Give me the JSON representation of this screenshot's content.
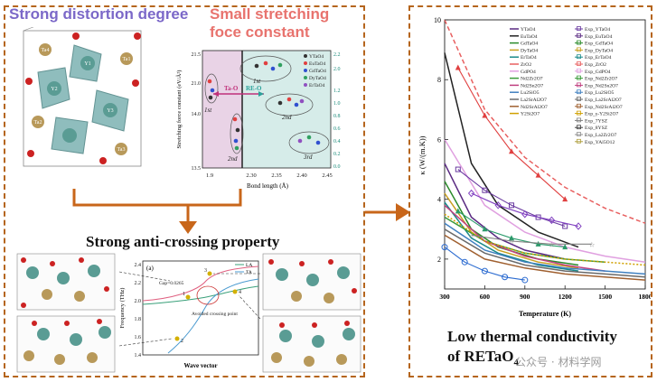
{
  "titles": {
    "distortion": "Strong distortion degree",
    "stretching": "Small stretching foce constant",
    "anticrossing": "Strong anti-crossing property",
    "conductivity_line1": "Low thermal conductivity",
    "conductivity_line2": "of RETaO",
    "conductivity_sub": "4"
  },
  "watermark": "公众号 · 材料学网",
  "crystal_labels": [
    "Y1",
    "Y2",
    "Y3",
    "Ta1",
    "Ta2",
    "Ta3",
    "Ta4"
  ],
  "chart_data": [
    {
      "type": "scatter",
      "title": "",
      "xlabel": "Bond length (Å)",
      "ylabel": "Stretching force constant (eV/Å²)",
      "xticks": [
        "1.9",
        "2.30",
        "2.35",
        "2.40",
        "2.45"
      ],
      "yticks_left": [
        "13.5",
        "14.0",
        "21.0",
        "21.5"
      ],
      "yticks_right": [
        "0.0",
        "0.2",
        "0.4",
        "0.6",
        "0.8",
        "1.0",
        "1.2",
        "2.0",
        "2.2"
      ],
      "legend": [
        "YTaO4",
        "EuTaO4",
        "GdTaO4",
        "DyTaO4",
        "ErTaO4"
      ],
      "annotations": [
        "1st",
        "2nd",
        "3rd",
        "1st",
        "2nd",
        "Ta-O",
        "RE-O"
      ],
      "legend_colors": [
        "#333333",
        "#e04040",
        "#3050d0",
        "#30a060",
        "#9050c0"
      ]
    },
    {
      "type": "line",
      "title": "(a)",
      "xlabel": "Wave vector",
      "ylabel": "Frequency (THz)",
      "yticks": [
        "1.4",
        "1.6",
        "1.8",
        "2.0",
        "2.2",
        "2.4"
      ],
      "legend": [
        "LA",
        "TA"
      ],
      "annotations": [
        "Gap=0.0265",
        "Avoided crossing point",
        "1",
        "2",
        "3",
        "4"
      ]
    },
    {
      "type": "line",
      "xlabel": "Temperature (K)",
      "ylabel": "κ (W/(m.K))",
      "xticks": [
        "300",
        "600",
        "900",
        "1200",
        "1500",
        "1800"
      ],
      "yticks": [
        "2",
        "4",
        "6",
        "8",
        "10"
      ],
      "xlim": [
        300,
        1800
      ],
      "ylim": [
        1,
        10
      ],
      "legend_left": [
        "YTaO4",
        "EuTaO4",
        "GdTaO4",
        "DyTaO4",
        "ErTaO4",
        "ZrO2",
        "GdPO4",
        "Nd2Zr2O7",
        "Nd2Sn2O7",
        "Lu2SiO5",
        "La2SrAl2O7",
        "Nd2SrAl2O7",
        "Y2Si2O7"
      ],
      "legend_right": [
        "Exp_YTaO4",
        "Exp_EuTaO4",
        "Exp_GdTaO4",
        "Exp_DyTaO4",
        "Exp_ErTaO4",
        "Exp_ZrO2",
        "Exp_GdPO4",
        "Exp_Nd2Zr2O7",
        "Exp_Nd2Sn2O7",
        "Exp_Lu2SiO5",
        "Exp_La2SrAl2O7",
        "Exp_Nd2SrAl2O7",
        "Exp_γ-Y2Si2O7",
        "Exp_7YSZ",
        "Exp_8YSZ",
        "Exp_La2Zr2O7",
        "Exp_YAl5O12"
      ],
      "series": [
        {
          "color": "#5a2a82",
          "x": [
            300,
            500,
            700,
            900,
            1200
          ],
          "y": [
            5.2,
            3.4,
            2.7,
            2.3,
            2.0
          ]
        },
        {
          "color": "#222222",
          "x": [
            300,
            500,
            700,
            1000,
            1300
          ],
          "y": [
            8.9,
            5.2,
            3.8,
            2.9,
            2.4
          ]
        },
        {
          "color": "#2a8a2a",
          "x": [
            300,
            500,
            700,
            1000,
            1300
          ],
          "y": [
            4.6,
            3.0,
            2.4,
            2.0,
            1.8
          ]
        },
        {
          "color": "#c8a020",
          "x": [
            300,
            500,
            700,
            1000,
            1300
          ],
          "y": [
            4.2,
            2.9,
            2.3,
            1.9,
            1.7
          ]
        },
        {
          "color": "#1a8a8a",
          "x": [
            300,
            500,
            700,
            1000,
            1300
          ],
          "y": [
            3.9,
            2.7,
            2.2,
            1.8,
            1.6
          ]
        },
        {
          "color": "#e86060",
          "x": [
            300,
            600,
            900,
            1200,
            1500,
            1800
          ],
          "y": [
            10.0,
            7.0,
            5.4,
            4.4,
            3.7,
            3.2
          ]
        },
        {
          "color": "#e0a0e0",
          "x": [
            300,
            600,
            900,
            1200,
            1500,
            1800
          ],
          "y": [
            6.0,
            3.8,
            2.9,
            2.4,
            2.1,
            1.9
          ]
        },
        {
          "color": "#3a9a3a",
          "x": [
            300,
            600,
            900,
            1200,
            1500
          ],
          "y": [
            3.4,
            2.6,
            2.2,
            2.0,
            1.9
          ]
        },
        {
          "color": "#c04080",
          "x": [
            300,
            600,
            900,
            1200,
            1500
          ],
          "y": [
            3.8,
            2.6,
            2.1,
            1.8,
            1.6
          ]
        },
        {
          "color": "#4080c0",
          "x": [
            300,
            600,
            900,
            1200,
            1500,
            1800
          ],
          "y": [
            3.2,
            2.3,
            1.9,
            1.7,
            1.6,
            1.5
          ]
        },
        {
          "color": "#6a6a6a",
          "x": [
            300,
            600,
            900,
            1200,
            1500,
            1800
          ],
          "y": [
            3.0,
            2.2,
            1.8,
            1.6,
            1.5,
            1.4
          ]
        },
        {
          "color": "#a06030",
          "x": [
            300,
            600,
            900,
            1200,
            1500,
            1800
          ],
          "y": [
            2.8,
            2.0,
            1.7,
            1.5,
            1.4,
            1.3
          ]
        },
        {
          "color": "#d0a000",
          "x": [
            300,
            600,
            900,
            1200,
            1500,
            1800
          ],
          "y": [
            3.5,
            2.6,
            2.2,
            2.0,
            1.9,
            1.8
          ]
        }
      ],
      "exp_series": [
        {
          "color": "#6a3aa0",
          "marker": "square",
          "x": [
            400,
            600,
            800,
            1000,
            1200
          ],
          "y": [
            5.0,
            4.3,
            3.8,
            3.4,
            3.1
          ]
        },
        {
          "color": "#e04040",
          "marker": "triangle",
          "x": [
            400,
            600,
            800,
            1000,
            1200
          ],
          "y": [
            8.4,
            6.8,
            5.6,
            4.8,
            4.0
          ]
        },
        {
          "color": "#2a6ad0",
          "marker": "circle",
          "x": [
            300,
            450,
            600,
            750,
            900
          ],
          "y": [
            2.4,
            1.9,
            1.6,
            1.4,
            1.3
          ]
        },
        {
          "color": "#8040c0",
          "marker": "diamond",
          "x": [
            500,
            700,
            900,
            1100,
            1300
          ],
          "y": [
            4.2,
            3.8,
            3.5,
            3.3,
            3.1
          ]
        },
        {
          "color": "#2a9a6a",
          "marker": "triangle",
          "x": [
            400,
            600,
            800,
            1000,
            1200
          ],
          "y": [
            3.6,
            3.0,
            2.7,
            2.5,
            2.4
          ]
        },
        {
          "color": "#808080",
          "marker": "star",
          "x": [
            500,
            800,
            1100,
            1400
          ],
          "y": [
            2.8,
            2.6,
            2.5,
            2.5
          ]
        }
      ]
    }
  ]
}
